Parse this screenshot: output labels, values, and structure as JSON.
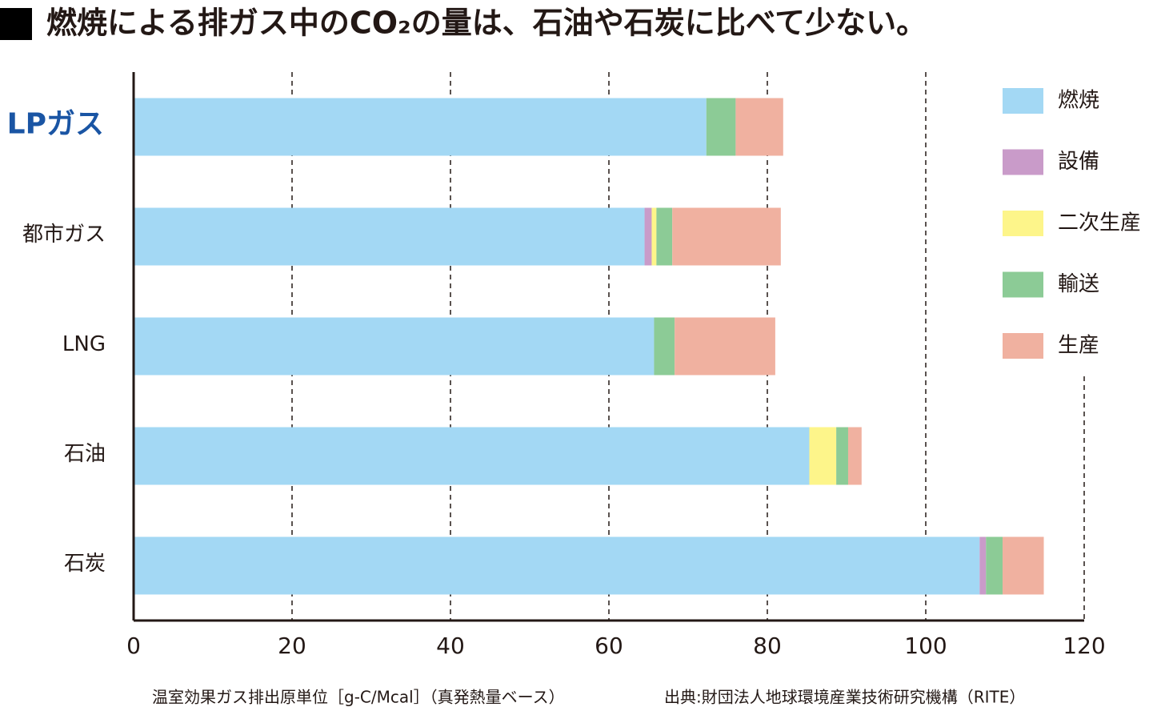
{
  "chart_data": {
    "type": "stacked-barh",
    "title": "燃焼による排ガス中のCO₂の量は、石油や石炭に比べて少ない。",
    "note": "温室効果ガス排出原単位［g-C/Mcal］（真発熱量ベース）",
    "source": "出典:財団法人地球環境産業技術研究機構（RITE）",
    "categories": [
      "LPガス",
      "都市ガス",
      "LNG",
      "石油",
      "石炭"
    ],
    "series": [
      {
        "name": "燃焼",
        "color": "#a3d8f4",
        "values": [
          72.3,
          64.5,
          65.7,
          85.3,
          106.8
        ]
      },
      {
        "name": "設備",
        "color": "#c99bc9",
        "values": [
          0,
          0.9,
          0,
          0,
          0.8
        ]
      },
      {
        "name": "二次生産",
        "color": "#fdf58a",
        "values": [
          0,
          0.6,
          0,
          3.4,
          0
        ]
      },
      {
        "name": "輸送",
        "color": "#8ccb96",
        "values": [
          3.7,
          2.0,
          2.6,
          1.5,
          2.1
        ]
      },
      {
        "name": "生産",
        "color": "#f0b1a0",
        "values": [
          6.0,
          13.7,
          12.7,
          1.7,
          5.2
        ]
      }
    ],
    "xlim": [
      0,
      120
    ],
    "xticks": [
      0,
      20,
      40,
      60,
      80,
      100,
      120
    ],
    "grid": true
  }
}
